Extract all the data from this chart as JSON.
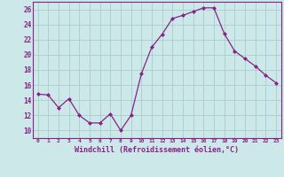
{
  "x": [
    0,
    1,
    2,
    3,
    4,
    5,
    6,
    7,
    8,
    9,
    10,
    11,
    12,
    13,
    14,
    15,
    16,
    17,
    18,
    19,
    20,
    21,
    22,
    23
  ],
  "y": [
    14.8,
    14.7,
    13.0,
    14.2,
    12.0,
    11.0,
    11.0,
    12.2,
    10.0,
    12.0,
    17.5,
    21.0,
    22.7,
    24.8,
    25.2,
    25.7,
    26.2,
    26.2,
    22.8,
    20.5,
    19.5,
    18.5,
    17.3,
    16.3
  ],
  "line_color": "#882288",
  "marker": "D",
  "marker_size": 2.0,
  "bg_color": "#cce8e8",
  "grid_color": "#aacccc",
  "xlabel": "Windchill (Refroidissement éolien,°C)",
  "xlabel_color": "#882288",
  "tick_color": "#882288",
  "spine_color": "#882288",
  "ylim": [
    9,
    27
  ],
  "xlim": [
    -0.5,
    23.5
  ],
  "yticks": [
    10,
    12,
    14,
    16,
    18,
    20,
    22,
    24,
    26
  ],
  "xticks": [
    0,
    1,
    2,
    3,
    4,
    5,
    6,
    7,
    8,
    9,
    10,
    11,
    12,
    13,
    14,
    15,
    16,
    17,
    18,
    19,
    20,
    21,
    22,
    23
  ],
  "xtick_labels": [
    "0",
    "1",
    "2",
    "3",
    "4",
    "5",
    "6",
    "7",
    "8",
    "9",
    "10",
    "11",
    "12",
    "13",
    "14",
    "15",
    "16",
    "17",
    "18",
    "19",
    "20",
    "21",
    "22",
    "23"
  ]
}
